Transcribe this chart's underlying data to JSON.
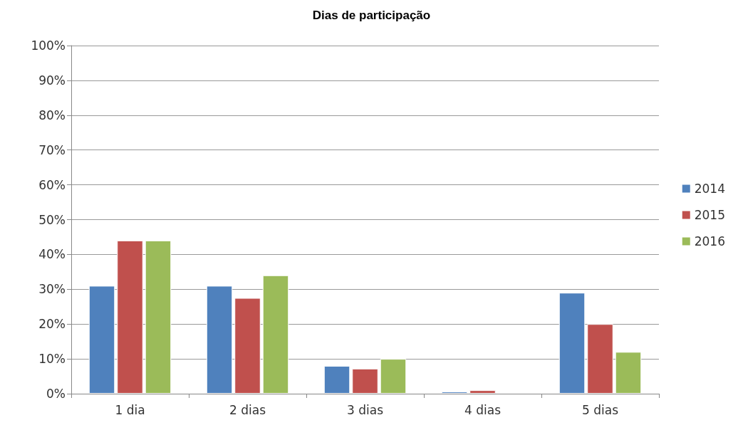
{
  "chart_data": {
    "type": "bar",
    "title": "Dias de participação",
    "categories": [
      "1 dia",
      "2 dias",
      "3 dias",
      "4 dias",
      "5 dias"
    ],
    "series": [
      {
        "name": "2014",
        "color": "#4f81bd",
        "values": [
          31,
          31,
          8,
          0.6,
          29
        ]
      },
      {
        "name": "2015",
        "color": "#c0504d",
        "values": [
          44,
          27.5,
          7.2,
          1,
          20
        ]
      },
      {
        "name": "2016",
        "color": "#9bbb59",
        "values": [
          44,
          34,
          10,
          null,
          12
        ]
      }
    ],
    "ylim": [
      0,
      100
    ],
    "yticks": [
      {
        "value": 0,
        "label": "0%"
      },
      {
        "value": 10,
        "label": "10%"
      },
      {
        "value": 20,
        "label": "20%"
      },
      {
        "value": 30,
        "label": "30%"
      },
      {
        "value": 40,
        "label": "40%"
      },
      {
        "value": 50,
        "label": "50%"
      },
      {
        "value": 60,
        "label": "60%"
      },
      {
        "value": 70,
        "label": "70%"
      },
      {
        "value": 80,
        "label": "80%"
      },
      {
        "value": 90,
        "label": "90%"
      },
      {
        "value": 100,
        "label": "100%"
      }
    ],
    "grid": "y",
    "legend": "right"
  }
}
